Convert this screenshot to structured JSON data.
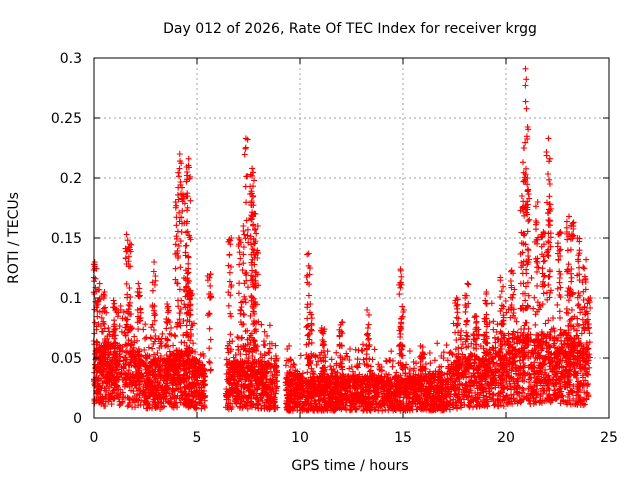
{
  "chart_data": {
    "type": "scatter",
    "title": "Day 012 of 2026, Rate Of TEC Index for receiver krgg",
    "xlabel": "GPS time / hours",
    "ylabel": "ROTI / TECUs",
    "xlim": [
      0,
      25
    ],
    "ylim": [
      0,
      0.3
    ],
    "x_ticks": [
      "0",
      "5",
      "10",
      "15",
      "20",
      "25"
    ],
    "y_ticks": [
      "0",
      "0.05",
      "0.1",
      "0.15",
      "0.2",
      "0.25",
      "0.3"
    ],
    "grid": true,
    "marker": "plus",
    "color": "#ff0000",
    "gaps_hours": [
      [
        5.4,
        6.4
      ],
      [
        8.9,
        9.3
      ]
    ],
    "series": [
      {
        "profile": [
          [
            0.0,
            0.035
          ],
          [
            0.5,
            0.04
          ],
          [
            1.0,
            0.038
          ],
          [
            1.5,
            0.04
          ],
          [
            2.0,
            0.035
          ],
          [
            2.5,
            0.032
          ],
          [
            3.0,
            0.03
          ],
          [
            3.5,
            0.03
          ],
          [
            4.0,
            0.035
          ],
          [
            4.5,
            0.035
          ],
          [
            5.0,
            0.03
          ],
          [
            5.4,
            0.03
          ],
          [
            6.4,
            0.028
          ],
          [
            7.0,
            0.03
          ],
          [
            7.5,
            0.03
          ],
          [
            8.0,
            0.03
          ],
          [
            8.9,
            0.028
          ],
          [
            9.3,
            0.024
          ],
          [
            10.0,
            0.022
          ],
          [
            11.0,
            0.022
          ],
          [
            12.0,
            0.022
          ],
          [
            13.0,
            0.022
          ],
          [
            14.0,
            0.022
          ],
          [
            15.0,
            0.022
          ],
          [
            16.0,
            0.022
          ],
          [
            17.0,
            0.025
          ],
          [
            17.5,
            0.03
          ],
          [
            18.0,
            0.033
          ],
          [
            19.0,
            0.035
          ],
          [
            20.0,
            0.04
          ],
          [
            21.0,
            0.045
          ],
          [
            22.0,
            0.045
          ],
          [
            23.0,
            0.045
          ],
          [
            24.0,
            0.04
          ]
        ],
        "peaks": [
          [
            0.05,
            0.13
          ],
          [
            0.2,
            0.112
          ],
          [
            0.45,
            0.105
          ],
          [
            1.0,
            0.098
          ],
          [
            1.6,
            0.153
          ],
          [
            1.75,
            0.145
          ],
          [
            2.2,
            0.112
          ],
          [
            2.9,
            0.13
          ],
          [
            3.6,
            0.095
          ],
          [
            4.0,
            0.18
          ],
          [
            4.15,
            0.22
          ],
          [
            4.3,
            0.192
          ],
          [
            4.55,
            0.216
          ],
          [
            4.6,
            0.205
          ],
          [
            4.5,
            0.185
          ],
          [
            4.7,
            0.105
          ],
          [
            5.6,
            0.12
          ],
          [
            6.6,
            0.15
          ],
          [
            7.1,
            0.15
          ],
          [
            7.3,
            0.16
          ],
          [
            7.4,
            0.233
          ],
          [
            7.65,
            0.208
          ],
          [
            7.7,
            0.198
          ],
          [
            7.75,
            0.17
          ],
          [
            7.9,
            0.16
          ],
          [
            7.8,
            0.14
          ],
          [
            10.4,
            0.137
          ],
          [
            10.5,
            0.095
          ],
          [
            11.1,
            0.075
          ],
          [
            12.0,
            0.08
          ],
          [
            13.3,
            0.09
          ],
          [
            14.9,
            0.124
          ],
          [
            14.95,
            0.09
          ],
          [
            15.9,
            0.06
          ],
          [
            17.6,
            0.1
          ],
          [
            18.1,
            0.112
          ],
          [
            18.5,
            0.085
          ],
          [
            19.0,
            0.105
          ],
          [
            19.8,
            0.117
          ],
          [
            20.3,
            0.123
          ],
          [
            20.8,
            0.185
          ],
          [
            20.9,
            0.225
          ],
          [
            21.0,
            0.291
          ],
          [
            21.05,
            0.2
          ],
          [
            21.5,
            0.18
          ],
          [
            21.8,
            0.155
          ],
          [
            22.05,
            0.233
          ],
          [
            22.1,
            0.195
          ],
          [
            22.6,
            0.155
          ],
          [
            23.0,
            0.168
          ],
          [
            23.2,
            0.163
          ],
          [
            23.5,
            0.15
          ],
          [
            23.8,
            0.132
          ],
          [
            24.0,
            0.1
          ]
        ]
      }
    ]
  }
}
